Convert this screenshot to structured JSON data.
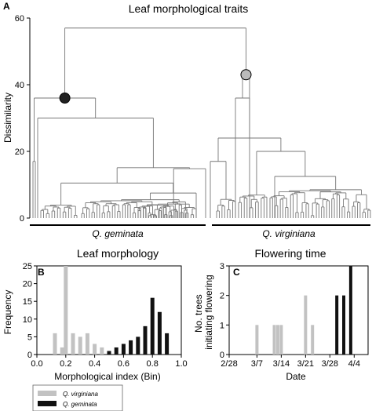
{
  "figure": {
    "panels": [
      "A",
      "B",
      "C"
    ]
  },
  "chart_data": [
    {
      "type": "dendrogram",
      "panel_label": "A",
      "title": "Leaf morphological traits",
      "ylabel": "Dissimilarity",
      "ylim": [
        0,
        60
      ],
      "yticks": [
        "0",
        "20",
        "40",
        "60"
      ],
      "grid": false,
      "root_height": 57,
      "clusters": [
        {
          "name": "Q. geminata",
          "merge_height": 36,
          "marker_color": "#222222"
        },
        {
          "name": "Q. virginiana",
          "merge_height": 43,
          "marker_color": "#bbbbbb"
        }
      ],
      "group_labels": [
        "Q. geminata",
        "Q. virginiana"
      ]
    },
    {
      "type": "bar",
      "panel_label": "B",
      "title": "Leaf morphology",
      "xlabel": "Morphological index (Bin)",
      "ylabel": "Frequency",
      "xlim": [
        0.0,
        1.0
      ],
      "ylim": [
        0,
        25
      ],
      "xticks": [
        "0.0",
        "0.2",
        "0.4",
        "0.6",
        "0.8",
        "1.0"
      ],
      "yticks": [
        "0",
        "5",
        "10",
        "15",
        "20",
        "25"
      ],
      "series": [
        {
          "name": "Q. virginiana",
          "color": "#c2c2c2",
          "x": [
            0.125,
            0.175,
            0.2,
            0.25,
            0.3,
            0.35,
            0.4,
            0.45,
            0.5
          ],
          "values": [
            6,
            2,
            25,
            6,
            5,
            6,
            3,
            2,
            1
          ]
        },
        {
          "name": "Q. geminata",
          "color": "#111111",
          "x": [
            0.5,
            0.55,
            0.6,
            0.65,
            0.7,
            0.75,
            0.8,
            0.85,
            0.9
          ],
          "values": [
            1,
            2,
            3,
            4,
            5,
            8,
            16,
            12,
            6
          ]
        }
      ]
    },
    {
      "type": "bar",
      "panel_label": "C",
      "title": "Flowering time",
      "xlabel": "Date",
      "ylabel": "No. trees initiating flowering",
      "ylim": [
        0,
        3
      ],
      "yticks": [
        "0",
        "1",
        "2",
        "3"
      ],
      "xticks": [
        "2/28",
        "3/7",
        "3/14",
        "3/21",
        "3/28",
        "4/4"
      ],
      "series": [
        {
          "name": "Q. virginiana",
          "color": "#c2c2c2",
          "x": [
            "3/7",
            "3/12",
            "3/13",
            "3/14",
            "3/21",
            "3/23"
          ],
          "values": [
            1,
            1,
            1,
            1,
            2,
            1
          ]
        },
        {
          "name": "Q. geminata",
          "color": "#111111",
          "x": [
            "3/30",
            "4/1",
            "4/3"
          ],
          "values": [
            2,
            2,
            3
          ]
        }
      ]
    }
  ],
  "legend": {
    "items": [
      {
        "label": "Q. virginiana",
        "color": "#c2c2c2"
      },
      {
        "label": "Q. geminata",
        "color": "#111111"
      }
    ]
  }
}
